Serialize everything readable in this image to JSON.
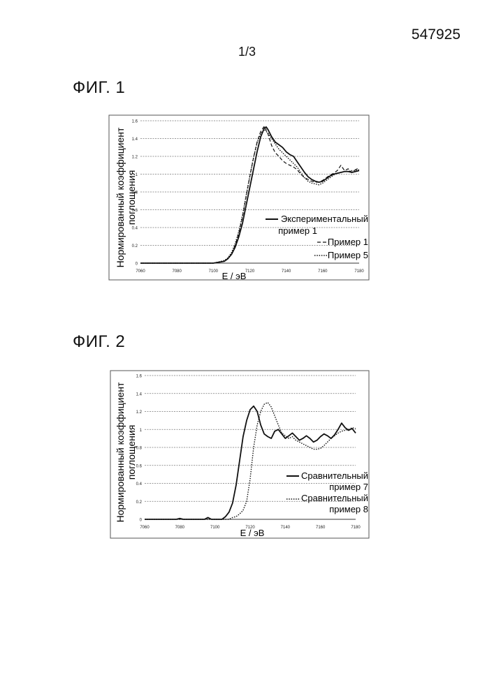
{
  "header": {
    "doc_number": "547925",
    "page": "1/3"
  },
  "figures": [
    {
      "title": "ФИГ. 1",
      "ylabel_line1": "Нормированный коэффициент",
      "ylabel_line2": "поглощения",
      "xlabel": "E / эВ",
      "legend": [
        {
          "line1": "Экспериментальный",
          "line2": "пример 1",
          "style": "solid"
        },
        {
          "line1": "Пример 1",
          "line2": "",
          "style": "dashed"
        },
        {
          "line1": "Пример 5",
          "line2": "",
          "style": "dotted"
        }
      ]
    },
    {
      "title": "ФИГ. 2",
      "ylabel_line1": "Нормированный коэффициент",
      "ylabel_line2": "поглощения",
      "xlabel": "E / эВ",
      "legend": [
        {
          "line1": "Сравнительный",
          "line2": "пример 7",
          "style": "solid"
        },
        {
          "line1": "Сравнительный",
          "line2": "пример 8",
          "style": "dotted"
        }
      ]
    }
  ],
  "chart_data": [
    {
      "type": "line",
      "title": "ФИГ. 1",
      "xlabel": "E / эВ",
      "ylabel": "Нормированный коэффициент поглощения",
      "xlim": [
        7060,
        7180
      ],
      "ylim": [
        0,
        1.6
      ],
      "xticks": [
        7060,
        7080,
        7100,
        7120,
        7140,
        7160,
        7180
      ],
      "yticks": [
        "0",
        "0.2",
        "0.4",
        "0.6",
        "0.8",
        "1",
        "1.2",
        "1.4",
        "1.6"
      ],
      "grid": "horizontal",
      "legend_position": "bottom-right",
      "series": [
        {
          "name": "Экспериментальный пример 1",
          "style": "solid",
          "x": [
            7060,
            7100,
            7106,
            7108,
            7110,
            7112,
            7114,
            7116,
            7118,
            7120,
            7122,
            7124,
            7126,
            7128,
            7129,
            7130,
            7132,
            7134,
            7136,
            7138,
            7140,
            7142,
            7144,
            7146,
            7148,
            7150,
            7152,
            7154,
            7156,
            7158,
            7160,
            7162,
            7164,
            7166,
            7168,
            7170,
            7172,
            7174,
            7176,
            7178,
            7180
          ],
          "y": [
            0,
            0,
            0.02,
            0.05,
            0.1,
            0.18,
            0.3,
            0.45,
            0.65,
            0.85,
            1.05,
            1.25,
            1.42,
            1.52,
            1.53,
            1.5,
            1.42,
            1.36,
            1.33,
            1.3,
            1.25,
            1.22,
            1.2,
            1.14,
            1.08,
            1.02,
            0.97,
            0.94,
            0.92,
            0.91,
            0.92,
            0.95,
            0.98,
            1.0,
            1.01,
            1.02,
            1.03,
            1.03,
            1.02,
            1.03,
            1.04
          ]
        },
        {
          "name": "Пример 1",
          "style": "dashed",
          "x": [
            7060,
            7100,
            7106,
            7108,
            7110,
            7112,
            7114,
            7116,
            7118,
            7120,
            7122,
            7124,
            7126,
            7128,
            7130,
            7132,
            7134,
            7136,
            7138,
            7140,
            7142,
            7144,
            7146,
            7148,
            7150,
            7152,
            7154,
            7156,
            7158,
            7160,
            7162,
            7164,
            7166,
            7168,
            7170,
            7172,
            7174,
            7176,
            7178,
            7180
          ],
          "y": [
            0,
            0,
            0.02,
            0.05,
            0.1,
            0.2,
            0.34,
            0.52,
            0.75,
            0.97,
            1.18,
            1.36,
            1.48,
            1.54,
            1.45,
            1.32,
            1.24,
            1.2,
            1.15,
            1.12,
            1.1,
            1.08,
            1.05,
            1.0,
            0.96,
            0.94,
            0.92,
            0.91,
            0.91,
            0.93,
            0.96,
            0.99,
            1.01,
            1.04,
            1.1,
            1.04,
            1.06,
            1.02,
            1.05,
            1.07
          ]
        },
        {
          "name": "Пример 5",
          "style": "dotted",
          "x": [
            7060,
            7100,
            7106,
            7108,
            7110,
            7112,
            7114,
            7116,
            7118,
            7120,
            7122,
            7124,
            7126,
            7128,
            7130,
            7132,
            7134,
            7136,
            7138,
            7140,
            7142,
            7144,
            7146,
            7148,
            7150,
            7152,
            7154,
            7156,
            7158,
            7160,
            7162,
            7164,
            7166,
            7168,
            7170,
            7172,
            7174,
            7176,
            7178,
            7180
          ],
          "y": [
            0,
            0,
            0.03,
            0.06,
            0.12,
            0.22,
            0.36,
            0.54,
            0.76,
            0.98,
            1.18,
            1.35,
            1.46,
            1.5,
            1.46,
            1.4,
            1.34,
            1.28,
            1.24,
            1.2,
            1.16,
            1.12,
            1.08,
            1.02,
            0.96,
            0.92,
            0.9,
            0.89,
            0.88,
            0.9,
            0.93,
            0.96,
            0.99,
            1.01,
            1.02,
            1.03,
            1.03,
            1.04,
            1.04,
            1.05
          ]
        }
      ]
    },
    {
      "type": "line",
      "title": "ФИГ. 2",
      "xlabel": "E / эВ",
      "ylabel": "Нормированный коэффициент поглощения",
      "xlim": [
        7060,
        7180
      ],
      "ylim": [
        0,
        1.6
      ],
      "xticks": [
        7060,
        7080,
        7100,
        7120,
        7140,
        7160,
        7180
      ],
      "yticks": [
        "0",
        "0.2",
        "0.4",
        "0.6",
        "0.8",
        "1",
        "1.2",
        "1.4",
        "1.6"
      ],
      "grid": "horizontal",
      "legend_position": "bottom-right",
      "series": [
        {
          "name": "Сравнительный пример 7",
          "style": "solid",
          "x": [
            7060,
            7078,
            7080,
            7082,
            7094,
            7096,
            7098,
            7104,
            7106,
            7108,
            7110,
            7112,
            7114,
            7116,
            7118,
            7120,
            7122,
            7124,
            7126,
            7128,
            7130,
            7132,
            7134,
            7136,
            7138,
            7140,
            7142,
            7144,
            7146,
            7148,
            7150,
            7152,
            7154,
            7156,
            7158,
            7160,
            7162,
            7164,
            7166,
            7168,
            7170,
            7172,
            7174,
            7176,
            7178,
            7180
          ],
          "y": [
            0,
            0,
            0.01,
            0,
            0,
            0.02,
            0,
            0,
            0.03,
            0.08,
            0.18,
            0.38,
            0.65,
            0.92,
            1.1,
            1.22,
            1.26,
            1.2,
            1.05,
            0.95,
            0.92,
            0.9,
            0.98,
            1.0,
            0.95,
            0.9,
            0.93,
            0.96,
            0.92,
            0.88,
            0.9,
            0.93,
            0.9,
            0.86,
            0.88,
            0.92,
            0.95,
            0.93,
            0.9,
            0.94,
            1.0,
            1.07,
            1.02,
            0.99,
            1.01,
            0.96
          ]
        },
        {
          "name": "Сравнительный пример 8",
          "style": "dotted",
          "x": [
            7060,
            7108,
            7110,
            7112,
            7114,
            7116,
            7118,
            7120,
            7122,
            7124,
            7126,
            7128,
            7130,
            7132,
            7134,
            7136,
            7138,
            7140,
            7142,
            7144,
            7146,
            7148,
            7150,
            7152,
            7154,
            7156,
            7158,
            7160,
            7162,
            7164,
            7166,
            7168,
            7170,
            7172,
            7174,
            7176,
            7178,
            7180
          ],
          "y": [
            0,
            0,
            0.02,
            0.03,
            0.06,
            0.1,
            0.2,
            0.45,
            0.8,
            1.05,
            1.2,
            1.28,
            1.3,
            1.25,
            1.15,
            1.05,
            0.96,
            0.93,
            0.9,
            0.92,
            0.88,
            0.86,
            0.84,
            0.82,
            0.8,
            0.78,
            0.78,
            0.79,
            0.82,
            0.86,
            0.9,
            0.93,
            0.96,
            0.98,
            0.99,
            1.0,
            1.02,
            1.01
          ]
        }
      ]
    }
  ]
}
